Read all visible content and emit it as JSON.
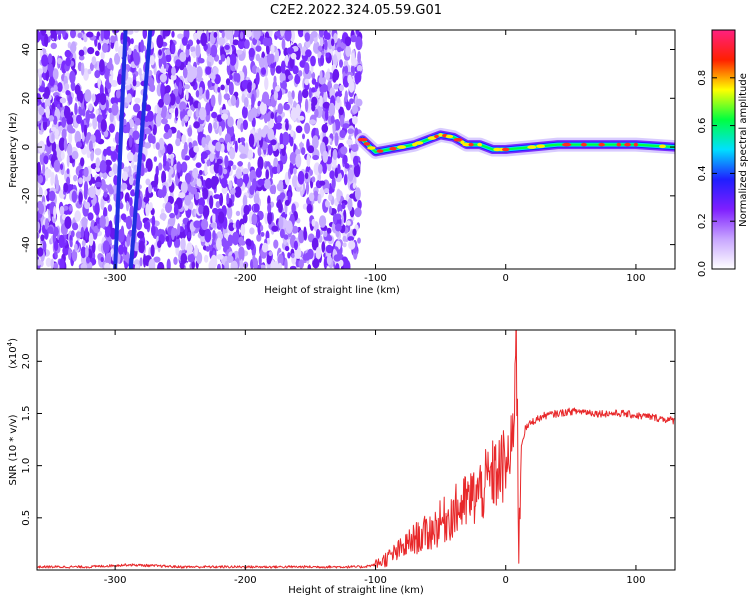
{
  "title": "C2E2.2022.324.05.59.G01",
  "chart_data": [
    {
      "type": "heatmap",
      "xlabel": "Height of straight line (km)",
      "ylabel": "Frequency (Hz)",
      "xlim": [
        -360,
        130
      ],
      "ylim": [
        -50,
        48
      ],
      "xticks": [
        -300,
        -200,
        -100,
        0,
        100
      ],
      "yticks": [
        40,
        20,
        0,
        -20,
        -40
      ],
      "colorbar": {
        "label": "Normalized spectral amplitude",
        "range": [
          0,
          1
        ],
        "ticks": [
          "0.0",
          "0.2",
          "0.4",
          "0.6",
          "0.8"
        ],
        "colors": [
          "#ffffff",
          "#c8a6ff",
          "#7f1fff",
          "#1f1fff",
          "#00e0ff",
          "#00ff40",
          "#ffff00",
          "#ff2000",
          "#ff2080"
        ]
      },
      "noise_region_x": [
        -360,
        -112
      ],
      "streaks": [
        {
          "x_at_top": -292,
          "x_at_bottom": -300
        },
        {
          "x_at_top": -273,
          "x_at_bottom": -288
        }
      ],
      "signal_track": [
        {
          "x": -110,
          "y": 3
        },
        {
          "x": -100,
          "y": -2
        },
        {
          "x": -90,
          "y": -1
        },
        {
          "x": -80,
          "y": 0
        },
        {
          "x": -70,
          "y": 1
        },
        {
          "x": -60,
          "y": 3
        },
        {
          "x": -50,
          "y": 5
        },
        {
          "x": -40,
          "y": 4
        },
        {
          "x": -30,
          "y": 1
        },
        {
          "x": -20,
          "y": 1
        },
        {
          "x": -10,
          "y": -1
        },
        {
          "x": 0,
          "y": -1
        },
        {
          "x": 20,
          "y": 0
        },
        {
          "x": 40,
          "y": 1
        },
        {
          "x": 60,
          "y": 1
        },
        {
          "x": 80,
          "y": 1
        },
        {
          "x": 100,
          "y": 1
        },
        {
          "x": 130,
          "y": 0
        }
      ]
    },
    {
      "type": "line",
      "xlabel": "Height of straight line (km)",
      "ylabel": "SNR (10 * v/v)",
      "yunit": "(x10",
      "yunit_exp": "4",
      "yunit_close": ")",
      "xlim": [
        -360,
        130
      ],
      "ylim": [
        0,
        2.3
      ],
      "xticks": [
        -300,
        -200,
        -100,
        0,
        100
      ],
      "yticks": [
        "0.5",
        "1.0",
        "1.5",
        "2.0"
      ],
      "ytick_values": [
        0.5,
        1.0,
        1.5,
        2.0
      ],
      "series": [
        {
          "color": "#e8282a",
          "x": [
            -360,
            -320,
            -290,
            -250,
            -200,
            -150,
            -110,
            -100,
            -90,
            -80,
            -70,
            -60,
            -50,
            -40,
            -30,
            -20,
            -10,
            0,
            5,
            8,
            10,
            12,
            15,
            20,
            30,
            40,
            50,
            60,
            70,
            80,
            90,
            100,
            110,
            120,
            130
          ],
          "y": [
            0.03,
            0.03,
            0.05,
            0.03,
            0.03,
            0.03,
            0.03,
            0.05,
            0.12,
            0.2,
            0.3,
            0.35,
            0.45,
            0.55,
            0.65,
            0.75,
            0.9,
            1.0,
            1.1,
            2.3,
            0.3,
            1.2,
            1.35,
            1.42,
            1.48,
            1.5,
            1.52,
            1.52,
            1.5,
            1.5,
            1.5,
            1.48,
            1.47,
            1.45,
            1.43
          ]
        }
      ]
    }
  ]
}
